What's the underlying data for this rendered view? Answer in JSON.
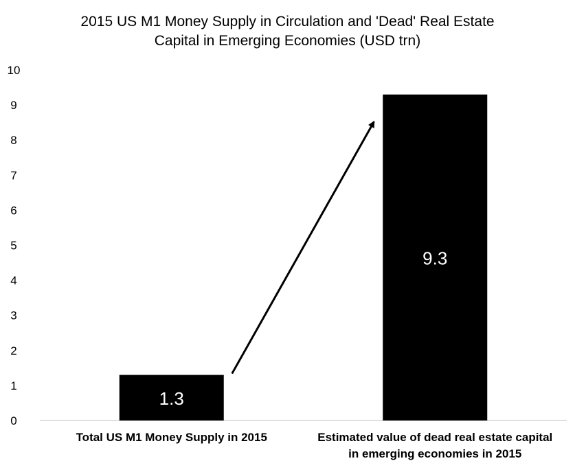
{
  "chart_data": {
    "type": "bar",
    "title": [
      "2015 US M1 Money Supply in Circulation and 'Dead' Real Estate",
      "Capital in Emerging Economies (USD trn)"
    ],
    "categories": [
      [
        "Total US M1 Money Supply in 2015"
      ],
      [
        "Estimated value of dead real estate capital",
        "in emerging economies in 2015"
      ]
    ],
    "values": [
      1.3,
      9.3
    ],
    "data_labels": [
      "1.3",
      "9.3"
    ],
    "ylim": [
      0,
      10
    ],
    "yticks": [
      "0",
      "1",
      "2",
      "3",
      "4",
      "5",
      "6",
      "7",
      "8",
      "9",
      "10"
    ],
    "bar_color": "#000000",
    "label_color": "#ffffff",
    "grid": false,
    "legend": "none",
    "annotation": "arrow from first bar to second bar"
  }
}
